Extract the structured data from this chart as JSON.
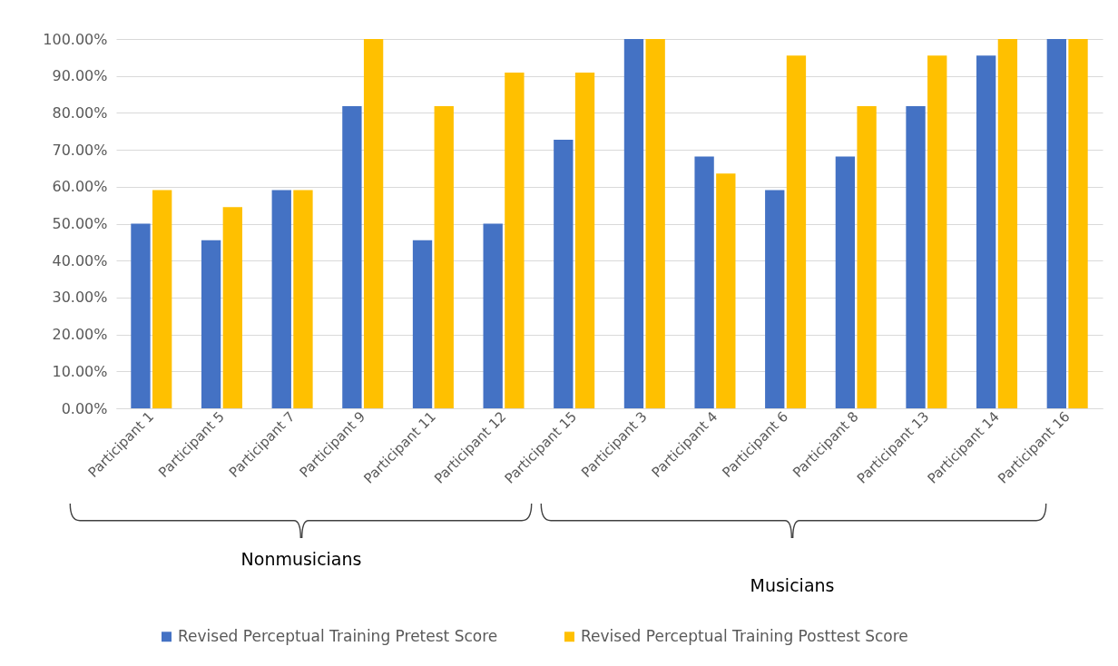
{
  "chart_data": {
    "type": "bar",
    "categories": [
      "Participant 1",
      "Participant 5",
      "Participant 7",
      "Participant 9",
      "Participant 11",
      "Participant 12",
      "Participant 15",
      "Participant 3",
      "Participant 4",
      "Participant 6",
      "Participant 8",
      "Participant 13",
      "Participant 14",
      "Participant 16"
    ],
    "series": [
      {
        "name": "Revised Perceptual Training Pretest Score",
        "color": "#4472c4",
        "values": [
          50,
          45.5,
          59.1,
          81.8,
          45.5,
          50,
          72.7,
          100,
          68.2,
          59.1,
          68.2,
          81.8,
          95.5,
          100
        ]
      },
      {
        "name": "Revised Perceptual Training Posttest Score",
        "color": "#ffc000",
        "values": [
          59.1,
          54.5,
          59.1,
          100,
          81.8,
          90.9,
          90.9,
          100,
          63.6,
          95.5,
          81.8,
          95.5,
          100,
          100
        ]
      }
    ],
    "ylim": [
      0,
      100
    ],
    "yticks": [
      {
        "value": 0,
        "label": "0.00%"
      },
      {
        "value": 10,
        "label": "10.00%"
      },
      {
        "value": 20,
        "label": "20.00%"
      },
      {
        "value": 30,
        "label": "30.00%"
      },
      {
        "value": 40,
        "label": "40.00%"
      },
      {
        "value": 50,
        "label": "50.00%"
      },
      {
        "value": 60,
        "label": "60.00%"
      },
      {
        "value": 70,
        "label": "70.00%"
      },
      {
        "value": 80,
        "label": "80.00%"
      },
      {
        "value": 90,
        "label": "90.00%"
      },
      {
        "value": 100,
        "label": "100.00%"
      }
    ],
    "grid": "y",
    "legend": "bottom",
    "annotations": [
      "Nonmusicians",
      "Musicians"
    ]
  }
}
